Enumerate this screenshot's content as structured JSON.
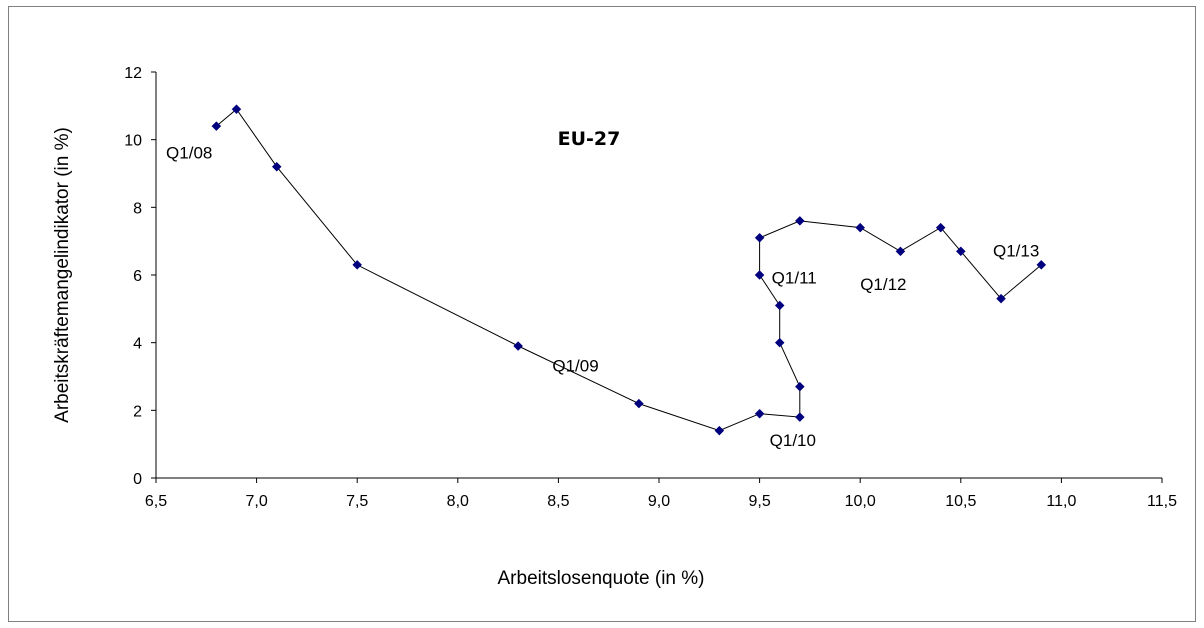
{
  "chart_data": {
    "type": "scatter",
    "title": "EU-27",
    "xlabel": "Arbeitslosenquote (in %)",
    "ylabel": "Arbeitskräftemangelindikator (in %)",
    "xlim": [
      6.5,
      11.5
    ],
    "ylim": [
      0,
      12
    ],
    "xticks": [
      "6,5",
      "7,0",
      "7,5",
      "8,0",
      "8,5",
      "9,0",
      "9,5",
      "10,0",
      "10,5",
      "11,0",
      "11,5"
    ],
    "yticks": [
      "0",
      "2",
      "4",
      "6",
      "8",
      "10",
      "12"
    ],
    "grid": false,
    "marker_color": "#00007F",
    "line_color": "#000000",
    "points": [
      {
        "x": 6.8,
        "y": 10.4
      },
      {
        "x": 6.9,
        "y": 10.9
      },
      {
        "x": 7.1,
        "y": 9.2
      },
      {
        "x": 7.5,
        "y": 6.3
      },
      {
        "x": 8.3,
        "y": 3.9
      },
      {
        "x": 8.9,
        "y": 2.2
      },
      {
        "x": 9.3,
        "y": 1.4
      },
      {
        "x": 9.5,
        "y": 1.9
      },
      {
        "x": 9.7,
        "y": 1.8
      },
      {
        "x": 9.7,
        "y": 2.7
      },
      {
        "x": 9.6,
        "y": 4.0
      },
      {
        "x": 9.6,
        "y": 5.1
      },
      {
        "x": 9.5,
        "y": 6.0
      },
      {
        "x": 9.5,
        "y": 7.1
      },
      {
        "x": 9.7,
        "y": 7.6
      },
      {
        "x": 10.0,
        "y": 7.4
      },
      {
        "x": 10.2,
        "y": 6.7
      },
      {
        "x": 10.4,
        "y": 7.4
      },
      {
        "x": 10.5,
        "y": 6.7
      },
      {
        "x": 10.7,
        "y": 5.3
      },
      {
        "x": 10.9,
        "y": 6.3
      }
    ],
    "annotations": [
      {
        "text": "Q1/08",
        "x": 6.55,
        "y": 9.45
      },
      {
        "text": "Q1/09",
        "x": 8.47,
        "y": 3.15
      },
      {
        "text": "Q1/10",
        "x": 9.55,
        "y": 0.95
      },
      {
        "text": "Q1/11",
        "x": 9.56,
        "y": 5.75
      },
      {
        "text": "Q1/12",
        "x": 10.0,
        "y": 5.55
      },
      {
        "text": "Q1/13",
        "x": 10.66,
        "y": 6.55
      }
    ]
  }
}
